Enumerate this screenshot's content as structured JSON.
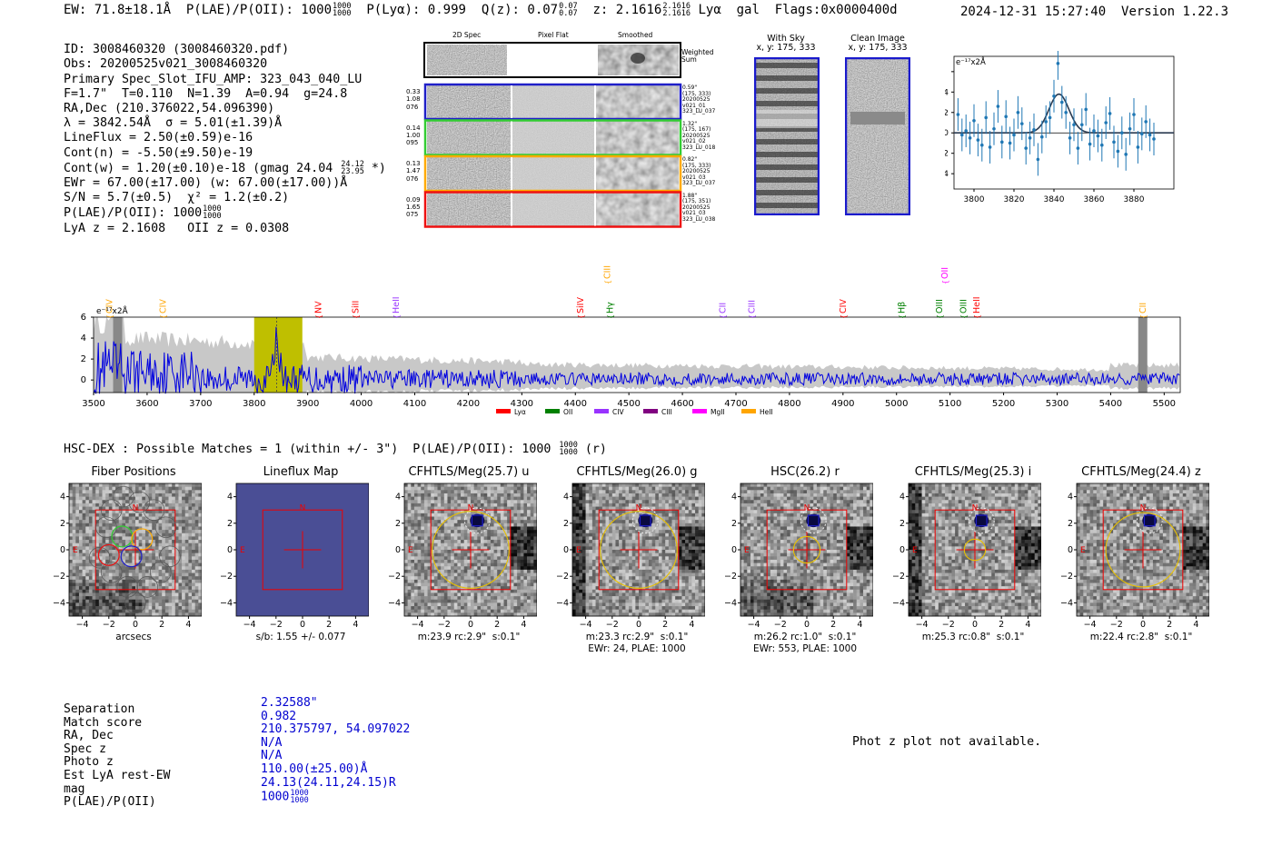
{
  "header": {
    "ew": "EW: 71.8±18.1Å",
    "plae_label": "P(LAE)/P(OII): 1000",
    "plae_num": "1000",
    "plae_den": "1000",
    "plya": "P(Lyα): 0.999",
    "qz_label": "Q(z): 0.07",
    "qz_num": "0.07",
    "qz_den": "0.07",
    "z_label": "z: 2.1616",
    "z_num": "2.1616",
    "z_den": "2.1616",
    "tail": "Lyα  gal  Flags:0x0000400d",
    "timestamp": "2024-12-31 15:27:40",
    "version": "Version 1.22.3"
  },
  "info": {
    "l1": "ID: 3008460320 (3008460320.pdf)",
    "l2": "Obs: 20200525v021_3008460320",
    "l3": "Primary Spec_Slot_IFU_AMP: 323_043_040_LU",
    "l4": "F=1.7\"  T=0.110  N=1.39  A=0.94  g=24.8",
    "l5": "RA,Dec (210.376022,54.096390)",
    "l6": "λ = 3842.54Å  σ = 5.01(±1.39)Å",
    "l7": "LineFlux = 2.50(±0.59)e-16",
    "l8": "Cont(n) = -5.50(±9.50)e-19",
    "l9": "Cont(w) = 1.20(±0.10)e-18 (gmag 24.04",
    "l9_num": "24.12",
    "l9_den": "23.95",
    "l9_tail": "*)",
    "l10": "EWr = 67.00(±17.00) (w: 67.00(±17.00))Å",
    "l11": "S/N = 5.7(±0.5)  χ² = 1.2(±0.2)",
    "l12": "P(LAE)/P(OII): 1000",
    "l12_num": "1000",
    "l12_den": "1000",
    "l13": "LyA z = 2.1608   OII z = 0.0308"
  },
  "cutouts": {
    "col_titles": [
      "2D Spec",
      "Pixel Flat",
      "Smoothed"
    ],
    "weighted_sum": "Weighted Sum",
    "rows": [
      {
        "left": [
          "0.33",
          "1.08",
          "076"
        ],
        "right": [
          "0.59\"",
          "(175, 333)",
          "20200525",
          "v021_01",
          "323_LU_037"
        ],
        "color": "#1f1fc8"
      },
      {
        "left": [
          "0.14",
          "1.00",
          "095"
        ],
        "right": [
          "1.32\"",
          "(175, 167)",
          "20200525",
          "v021_02",
          "323_LU_018"
        ],
        "color": "#33cc33"
      },
      {
        "left": [
          "0.13",
          "1.47",
          "076"
        ],
        "right": [
          "0.82\"",
          "(175, 333)",
          "20200525",
          "v021_03",
          "323_LU_037"
        ],
        "color": "#ffaa00"
      },
      {
        "left": [
          "0.09",
          "1.65",
          "075"
        ],
        "right": [
          "1.88\"",
          "(175, 351)",
          "20200525",
          "v021_03",
          "323_LU_038"
        ],
        "color": "#ee1111"
      }
    ],
    "with_sky_title": "With Sky",
    "with_sky_sub": "x, y: 175, 333",
    "clean_title": "Clean Image",
    "clean_sub": "x, y: 175, 333"
  },
  "zoom_chart": {
    "type": "scatter",
    "ylabel": "e⁻¹⁷x2Å",
    "xlim": [
      3790,
      3900
    ],
    "ylim": [
      -5.5,
      7.5
    ],
    "xticks": [
      3800,
      3820,
      3840,
      3860,
      3880
    ],
    "yticks": [
      -4,
      -2,
      0,
      2,
      4,
      6
    ],
    "x": [
      3792,
      3794,
      3796,
      3798,
      3800,
      3802,
      3804,
      3806,
      3808,
      3810,
      3812,
      3814,
      3816,
      3818,
      3820,
      3822,
      3824,
      3826,
      3828,
      3830,
      3832,
      3834,
      3836,
      3838,
      3840,
      3842,
      3844,
      3846,
      3848,
      3850,
      3852,
      3854,
      3856,
      3858,
      3860,
      3862,
      3864,
      3866,
      3868,
      3870,
      3872,
      3874,
      3876,
      3878,
      3880,
      3882,
      3884,
      3886,
      3888,
      3890
    ],
    "y": [
      1.8,
      -0.2,
      0.2,
      -0.5,
      1.2,
      -0.7,
      -1.2,
      1.5,
      -1.4,
      0.4,
      2.6,
      -0.9,
      1.6,
      -1.0,
      -0.2,
      2.0,
      0.9,
      -1.5,
      -0.5,
      0.3,
      -2.6,
      -0.4,
      1.1,
      1.5,
      3.6,
      6.8,
      3.0,
      2.0,
      -0.5,
      0.8,
      -1.5,
      0.8,
      2.3,
      -1.1,
      0.2,
      -0.3,
      -1.2,
      1.0,
      1.9,
      -0.9,
      -1.8,
      0.0,
      -2.1,
      0.4,
      1.8,
      -1.4,
      -0.1,
      1.1,
      -0.2,
      -0.6
    ],
    "errors": [
      1.6,
      1.6,
      1.6,
      1.6,
      1.6,
      1.6,
      1.6,
      1.6,
      1.6,
      1.6,
      1.6,
      1.6,
      1.6,
      1.6,
      1.6,
      1.6,
      1.6,
      1.6,
      1.6,
      1.6,
      1.6,
      1.6,
      1.6,
      1.6,
      1.6,
      1.6,
      1.6,
      1.6,
      1.6,
      1.6,
      1.6,
      1.6,
      1.6,
      1.6,
      1.6,
      1.6,
      1.6,
      1.6,
      1.6,
      1.6,
      1.6,
      1.6,
      1.6,
      1.6,
      1.6,
      1.6,
      1.6,
      1.6,
      1.6,
      1.6
    ],
    "fit": {
      "center": 3842.5,
      "sigma": 5.0,
      "amp": 3.8
    }
  },
  "spectrum": {
    "type": "line",
    "ylabel": "e⁻¹⁷x2Å",
    "xlim": [
      3500,
      5530
    ],
    "ylim": [
      -1.2,
      6
    ],
    "xticks": [
      3500,
      3600,
      3700,
      3800,
      3900,
      4000,
      4100,
      4200,
      4300,
      4400,
      4500,
      4600,
      4700,
      4800,
      4900,
      5000,
      5100,
      5200,
      5300,
      5400,
      5500
    ],
    "yticks": [
      0,
      2,
      4,
      6
    ],
    "highlight": [
      3800,
      3890
    ],
    "grey_bars": [
      3545,
      5460
    ],
    "lines": [
      {
        "label": "CIV",
        "x": 3530,
        "color": "#ffa500",
        "row": 1
      },
      {
        "label": "CIV",
        "x": 3630,
        "color": "#ffa500",
        "row": 1
      },
      {
        "label": "NV",
        "x": 3920,
        "color": "#ff0000",
        "row": 1
      },
      {
        "label": "SiII",
        "x": 3990,
        "color": "#ff0000",
        "row": 1
      },
      {
        "label": "HeII",
        "x": 4065,
        "color": "#9933ff",
        "row": 1
      },
      {
        "label": "SiIV",
        "x": 4410,
        "color": "#ff0000",
        "row": 1
      },
      {
        "label": "CIII",
        "x": 4460,
        "color": "#ffa500",
        "row": 0
      },
      {
        "label": "Hγ",
        "x": 4465,
        "color": "#008000",
        "row": 1
      },
      {
        "label": "CII",
        "x": 4675,
        "color": "#9933ff",
        "row": 1
      },
      {
        "label": "CIII",
        "x": 4730,
        "color": "#9933ff",
        "row": 1
      },
      {
        "label": "CIV",
        "x": 4900,
        "color": "#ff0000",
        "row": 1
      },
      {
        "label": "Hβ",
        "x": 5010,
        "color": "#008000",
        "row": 1
      },
      {
        "label": "OII",
        "x": 5090,
        "color": "#ff00ff",
        "row": 0
      },
      {
        "label": "OIII",
        "x": 5080,
        "color": "#008000",
        "row": 1
      },
      {
        "label": "OIII",
        "x": 5125,
        "color": "#008000",
        "row": 1
      },
      {
        "label": "HeII",
        "x": 5150,
        "color": "#ff0000",
        "row": 1
      },
      {
        "label": "CII",
        "x": 5460,
        "color": "#ffa500",
        "row": 1
      }
    ],
    "legend": [
      {
        "label": "Lyα",
        "color": "#ff0000"
      },
      {
        "label": "OII",
        "color": "#008000"
      },
      {
        "label": "CIV",
        "color": "#9933ff"
      },
      {
        "label": "CIII",
        "color": "#800080"
      },
      {
        "label": "MgII",
        "color": "#ff00ff"
      },
      {
        "label": "HeII",
        "color": "#ffa500"
      }
    ]
  },
  "matches": {
    "title": "HSC-DEX : Possible Matches = 1 (within +/- 3\")  P(LAE)/P(OII): 1000",
    "title_num": "1000",
    "title_den": "1000",
    "title_tail": "(r)"
  },
  "imaging": [
    {
      "title": "Fiber Positions",
      "xlabel": "arcsecs",
      "extra": ""
    },
    {
      "title": "Lineflux Map",
      "xlabel": "s/b: 1.55 +/- 0.077",
      "extra": ""
    },
    {
      "title": "CFHTLS/Meg(25.7) u",
      "xlabel": "m:23.9 rc:2.9\"  s:0.1\"",
      "extra": ""
    },
    {
      "title": "CFHTLS/Meg(26.0) g",
      "xlabel": "m:23.3 rc:2.9\"  s:0.1\"",
      "extra": "EWr: 24, PLAE: 1000"
    },
    {
      "title": "HSC(26.2) r",
      "xlabel": "m:26.2 rc:1.0\"  s:0.1\"",
      "extra": "EWr: 553, PLAE: 1000"
    },
    {
      "title": "CFHTLS/Meg(25.3) i",
      "xlabel": "m:25.3 rc:0.8\"  s:0.1\"",
      "extra": ""
    },
    {
      "title": "CFHTLS/Meg(24.4) z",
      "xlabel": "m:22.4 rc:2.8\"  s:0.1\"",
      "extra": ""
    }
  ],
  "imaging_axes": {
    "ticks": [
      "−4",
      "−2",
      "0",
      "2",
      "4"
    ],
    "north": "N",
    "east": "E"
  },
  "table": {
    "labels": [
      "Separation",
      "Match score",
      "RA, Dec",
      "Spec z",
      "Photo z",
      "Est LyA rest-EW",
      "mag",
      "P(LAE)/P(OII)"
    ],
    "values": [
      "2.32588\"",
      "0.982",
      "210.375797, 54.097022",
      "N/A",
      "N/A",
      "110.00(±25.00)Å",
      "24.13(24.11,24.15)R",
      "1000"
    ],
    "last_num": "1000",
    "last_den": "1000"
  },
  "photz": "Phot z plot not available."
}
